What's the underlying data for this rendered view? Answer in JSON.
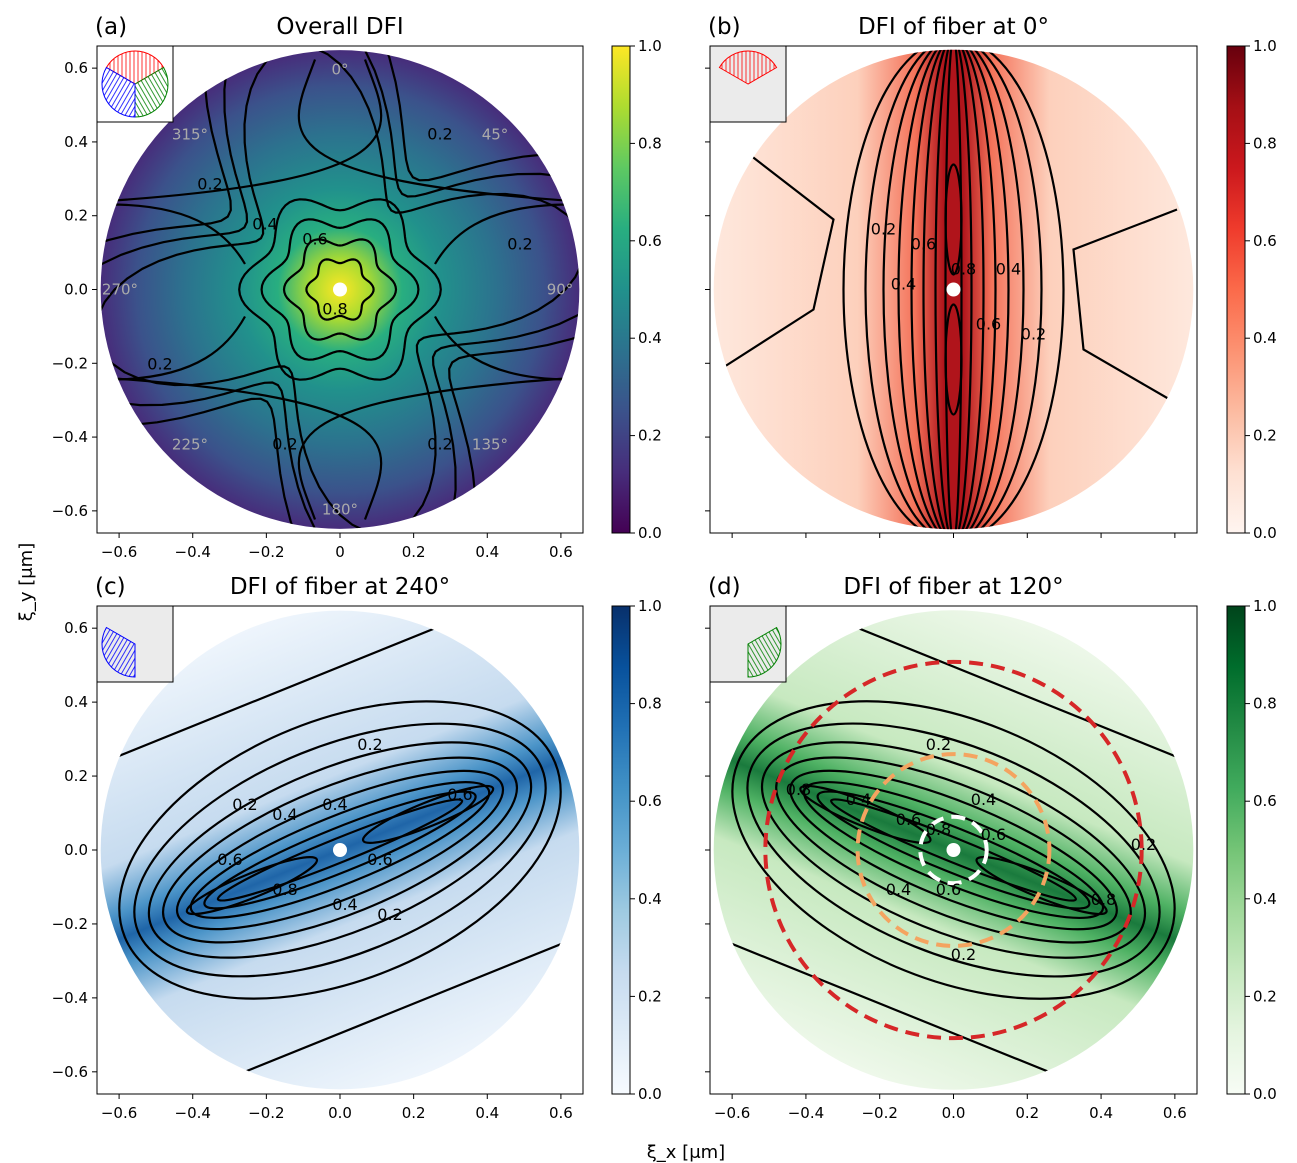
{
  "figure": {
    "xlabel": "ξ_x [μm]",
    "ylabel": "ξ_y [μm]"
  },
  "colors": {
    "viridis": [
      "#440154",
      "#472d7b",
      "#3b528b",
      "#2c728e",
      "#21918c",
      "#28ae80",
      "#5ec962",
      "#addc30",
      "#fde725"
    ],
    "reds": [
      "#fff5f0",
      "#fee0d2",
      "#fcbba1",
      "#fc9272",
      "#fb6a4a",
      "#ef3b2c",
      "#cb181d",
      "#a50f15",
      "#67000d"
    ],
    "blues": [
      "#f7fbff",
      "#deebf7",
      "#c6dbef",
      "#9ecae1",
      "#6baed6",
      "#4292c6",
      "#2171b5",
      "#08519c",
      "#08306b"
    ],
    "greens": [
      "#f7fcf5",
      "#e5f5e0",
      "#c7e9c0",
      "#a1d99b",
      "#74c476",
      "#41ab5d",
      "#238b45",
      "#006d2c",
      "#00441b"
    ],
    "contour_line": "#000000",
    "angle_label": "#aaaaaa",
    "circle_outer": "#d62728",
    "circle_inner": "#f4a460",
    "inset_bg": "#ebebeb",
    "fiber_red": "#ff0000",
    "fiber_blue": "#0000ff",
    "fiber_green": "#008000"
  },
  "chart_data": [
    {
      "panel": "(a)",
      "title": "Overall DFI",
      "type": "heatmap",
      "colormap": "viridis",
      "xlim": [
        -0.66,
        0.66
      ],
      "ylim": [
        -0.66,
        0.66
      ],
      "disc_radius": 0.65,
      "xticks": [
        -0.6,
        -0.4,
        -0.2,
        0.0,
        0.2,
        0.4,
        0.6
      ],
      "yticks": [
        "0.6",
        "0.4",
        "0.2",
        "0.0",
        "−0.2",
        "−0.4",
        "−0.6"
      ],
      "colorbar_ticks": [
        "1.0",
        "0.8",
        "0.6",
        "0.4",
        "0.2",
        "0.0"
      ],
      "contour_levels": [
        0.2,
        0.4,
        0.6,
        0.8
      ],
      "contour_labels": [
        "0.2",
        "0.2",
        "0.2",
        "0.2",
        "0.2",
        "0.2",
        "0.4",
        "0.6",
        "0.8"
      ],
      "angle_labels": [
        "0°",
        "45°",
        "90°",
        "135°",
        "180°",
        "225°",
        "270°",
        "315°"
      ],
      "inset_fibers": [
        "red",
        "green",
        "blue"
      ]
    },
    {
      "panel": "(b)",
      "title": "DFI of fiber at 0°",
      "type": "heatmap",
      "colormap": "reds",
      "xlim": [
        -0.66,
        0.66
      ],
      "ylim": [
        -0.66,
        0.66
      ],
      "disc_radius": 0.65,
      "colorbar_ticks": [
        "1.0",
        "0.8",
        "0.6",
        "0.4",
        "0.2",
        "0.0"
      ],
      "contour_labels": [
        "0.2",
        "0.6",
        "0.8",
        "0.4",
        "0.4",
        "0.6",
        "0.2"
      ],
      "inset_fibers": [
        "red"
      ]
    },
    {
      "panel": "(c)",
      "title": "DFI of fiber at 240°",
      "type": "heatmap",
      "colormap": "blues",
      "xlim": [
        -0.66,
        0.66
      ],
      "ylim": [
        -0.66,
        0.66
      ],
      "disc_radius": 0.65,
      "xticks": [
        "−0.6",
        "−0.4",
        "−0.2",
        "0.0",
        "0.2",
        "0.4",
        "0.6"
      ],
      "yticks": [
        "0.6",
        "0.4",
        "0.2",
        "0.0",
        "−0.2",
        "−0.4",
        "−0.6"
      ],
      "colorbar_ticks": [
        "1.0",
        "0.8",
        "0.6",
        "0.4",
        "0.2",
        "0.0"
      ],
      "contour_labels": [
        "0.2",
        "0.6",
        "0.2",
        "0.4",
        "0.4",
        "0.6",
        "0.8",
        "0.6",
        "0.4",
        "0.2"
      ],
      "inset_fibers": [
        "blue"
      ]
    },
    {
      "panel": "(d)",
      "title": "DFI of fiber at 120°",
      "type": "heatmap",
      "colormap": "greens",
      "xlim": [
        -0.66,
        0.66
      ],
      "ylim": [
        -0.66,
        0.66
      ],
      "disc_radius": 0.65,
      "xticks": [
        "−0.6",
        "−0.4",
        "−0.2",
        "0.0",
        "0.2",
        "0.4",
        "0.6"
      ],
      "colorbar_ticks": [
        "1.0",
        "0.8",
        "0.6",
        "0.4",
        "0.2",
        "0.0"
      ],
      "contour_labels": [
        "0.4",
        "0.2",
        "0.8",
        "0.6",
        "0.4",
        "0.8",
        "0.6",
        "0.2",
        "0.4",
        "0.6",
        "0.8",
        "0.2"
      ],
      "dashed_circles_radius": [
        0.51,
        0.26,
        0.09
      ],
      "inset_fibers": [
        "green"
      ]
    }
  ]
}
